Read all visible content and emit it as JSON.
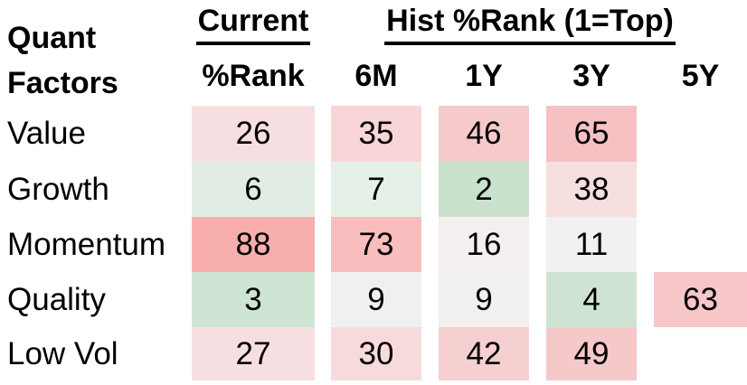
{
  "title": {
    "line1": "Quant",
    "line2": "Factors"
  },
  "headers": {
    "current_group": "Current",
    "current_sub": "%Rank",
    "hist_group": "Hist %Rank (1=Top)",
    "hist_subs": [
      "6M",
      "1Y",
      "3Y",
      "5Y"
    ]
  },
  "rows": [
    {
      "label": "Value",
      "cells": [
        {
          "value": "26",
          "color": "#f7dfe1"
        },
        {
          "value": "35",
          "color": "#f8d6d7"
        },
        {
          "value": "46",
          "color": "#f6caca"
        },
        {
          "value": "65",
          "color": "#f5c1c2"
        }
      ]
    },
    {
      "label": "Growth",
      "cells": [
        {
          "value": "6",
          "color": "#e1ede3"
        },
        {
          "value": "7",
          "color": "#e5f0e7"
        },
        {
          "value": "2",
          "color": "#c9e2cd"
        },
        {
          "value": "38",
          "color": "#f7dedf"
        }
      ]
    },
    {
      "label": "Momentum",
      "cells": [
        {
          "value": "88",
          "color": "#f9aeae"
        },
        {
          "value": "73",
          "color": "#f9bdbd"
        },
        {
          "value": "16",
          "color": "#f4efef"
        },
        {
          "value": "11",
          "color": "#f2f0f0"
        }
      ]
    },
    {
      "label": "Quality",
      "cells": [
        {
          "value": "3",
          "color": "#cfe5d3"
        },
        {
          "value": "9",
          "color": "#f1f0f1"
        },
        {
          "value": "9",
          "color": "#f1f0f1"
        },
        {
          "value": "4",
          "color": "#cfe3d2"
        },
        {
          "value": "63",
          "color": "#f7c6c8"
        }
      ]
    },
    {
      "label": "Low Vol",
      "cells": [
        {
          "value": "27",
          "color": "#f7dfe1"
        },
        {
          "value": "30",
          "color": "#f7dbdc"
        },
        {
          "value": "42",
          "color": "#f6cfd0"
        },
        {
          "value": "49",
          "color": "#f5c8c9"
        }
      ]
    }
  ],
  "colors": {
    "good_green": "#c9e2cd",
    "neutral_white": "#f2f0f0",
    "bad_red": "#f9aeae",
    "text": "#000000",
    "background": "#ffffff"
  },
  "chart_data": {
    "type": "heatmap",
    "title": "Quant Factors",
    "column_groups": [
      "Current",
      "Hist %Rank (1=Top)"
    ],
    "columns": [
      "Current %Rank",
      "6M",
      "1Y",
      "3Y",
      "5Y"
    ],
    "row_labels": [
      "Value",
      "Growth",
      "Momentum",
      "Quality",
      "Low Vol"
    ],
    "values": [
      [
        26,
        35,
        46,
        65,
        null
      ],
      [
        6,
        7,
        2,
        38,
        null
      ],
      [
        88,
        73,
        16,
        11,
        null
      ],
      [
        3,
        9,
        9,
        4,
        63
      ],
      [
        27,
        30,
        42,
        49,
        null
      ]
    ],
    "scale_note": "1=Top; low ranks shaded green, mid ~10 near white, high ranks shaded red",
    "value_range": [
      1,
      100
    ],
    "legend_position": "none",
    "grid": false
  }
}
